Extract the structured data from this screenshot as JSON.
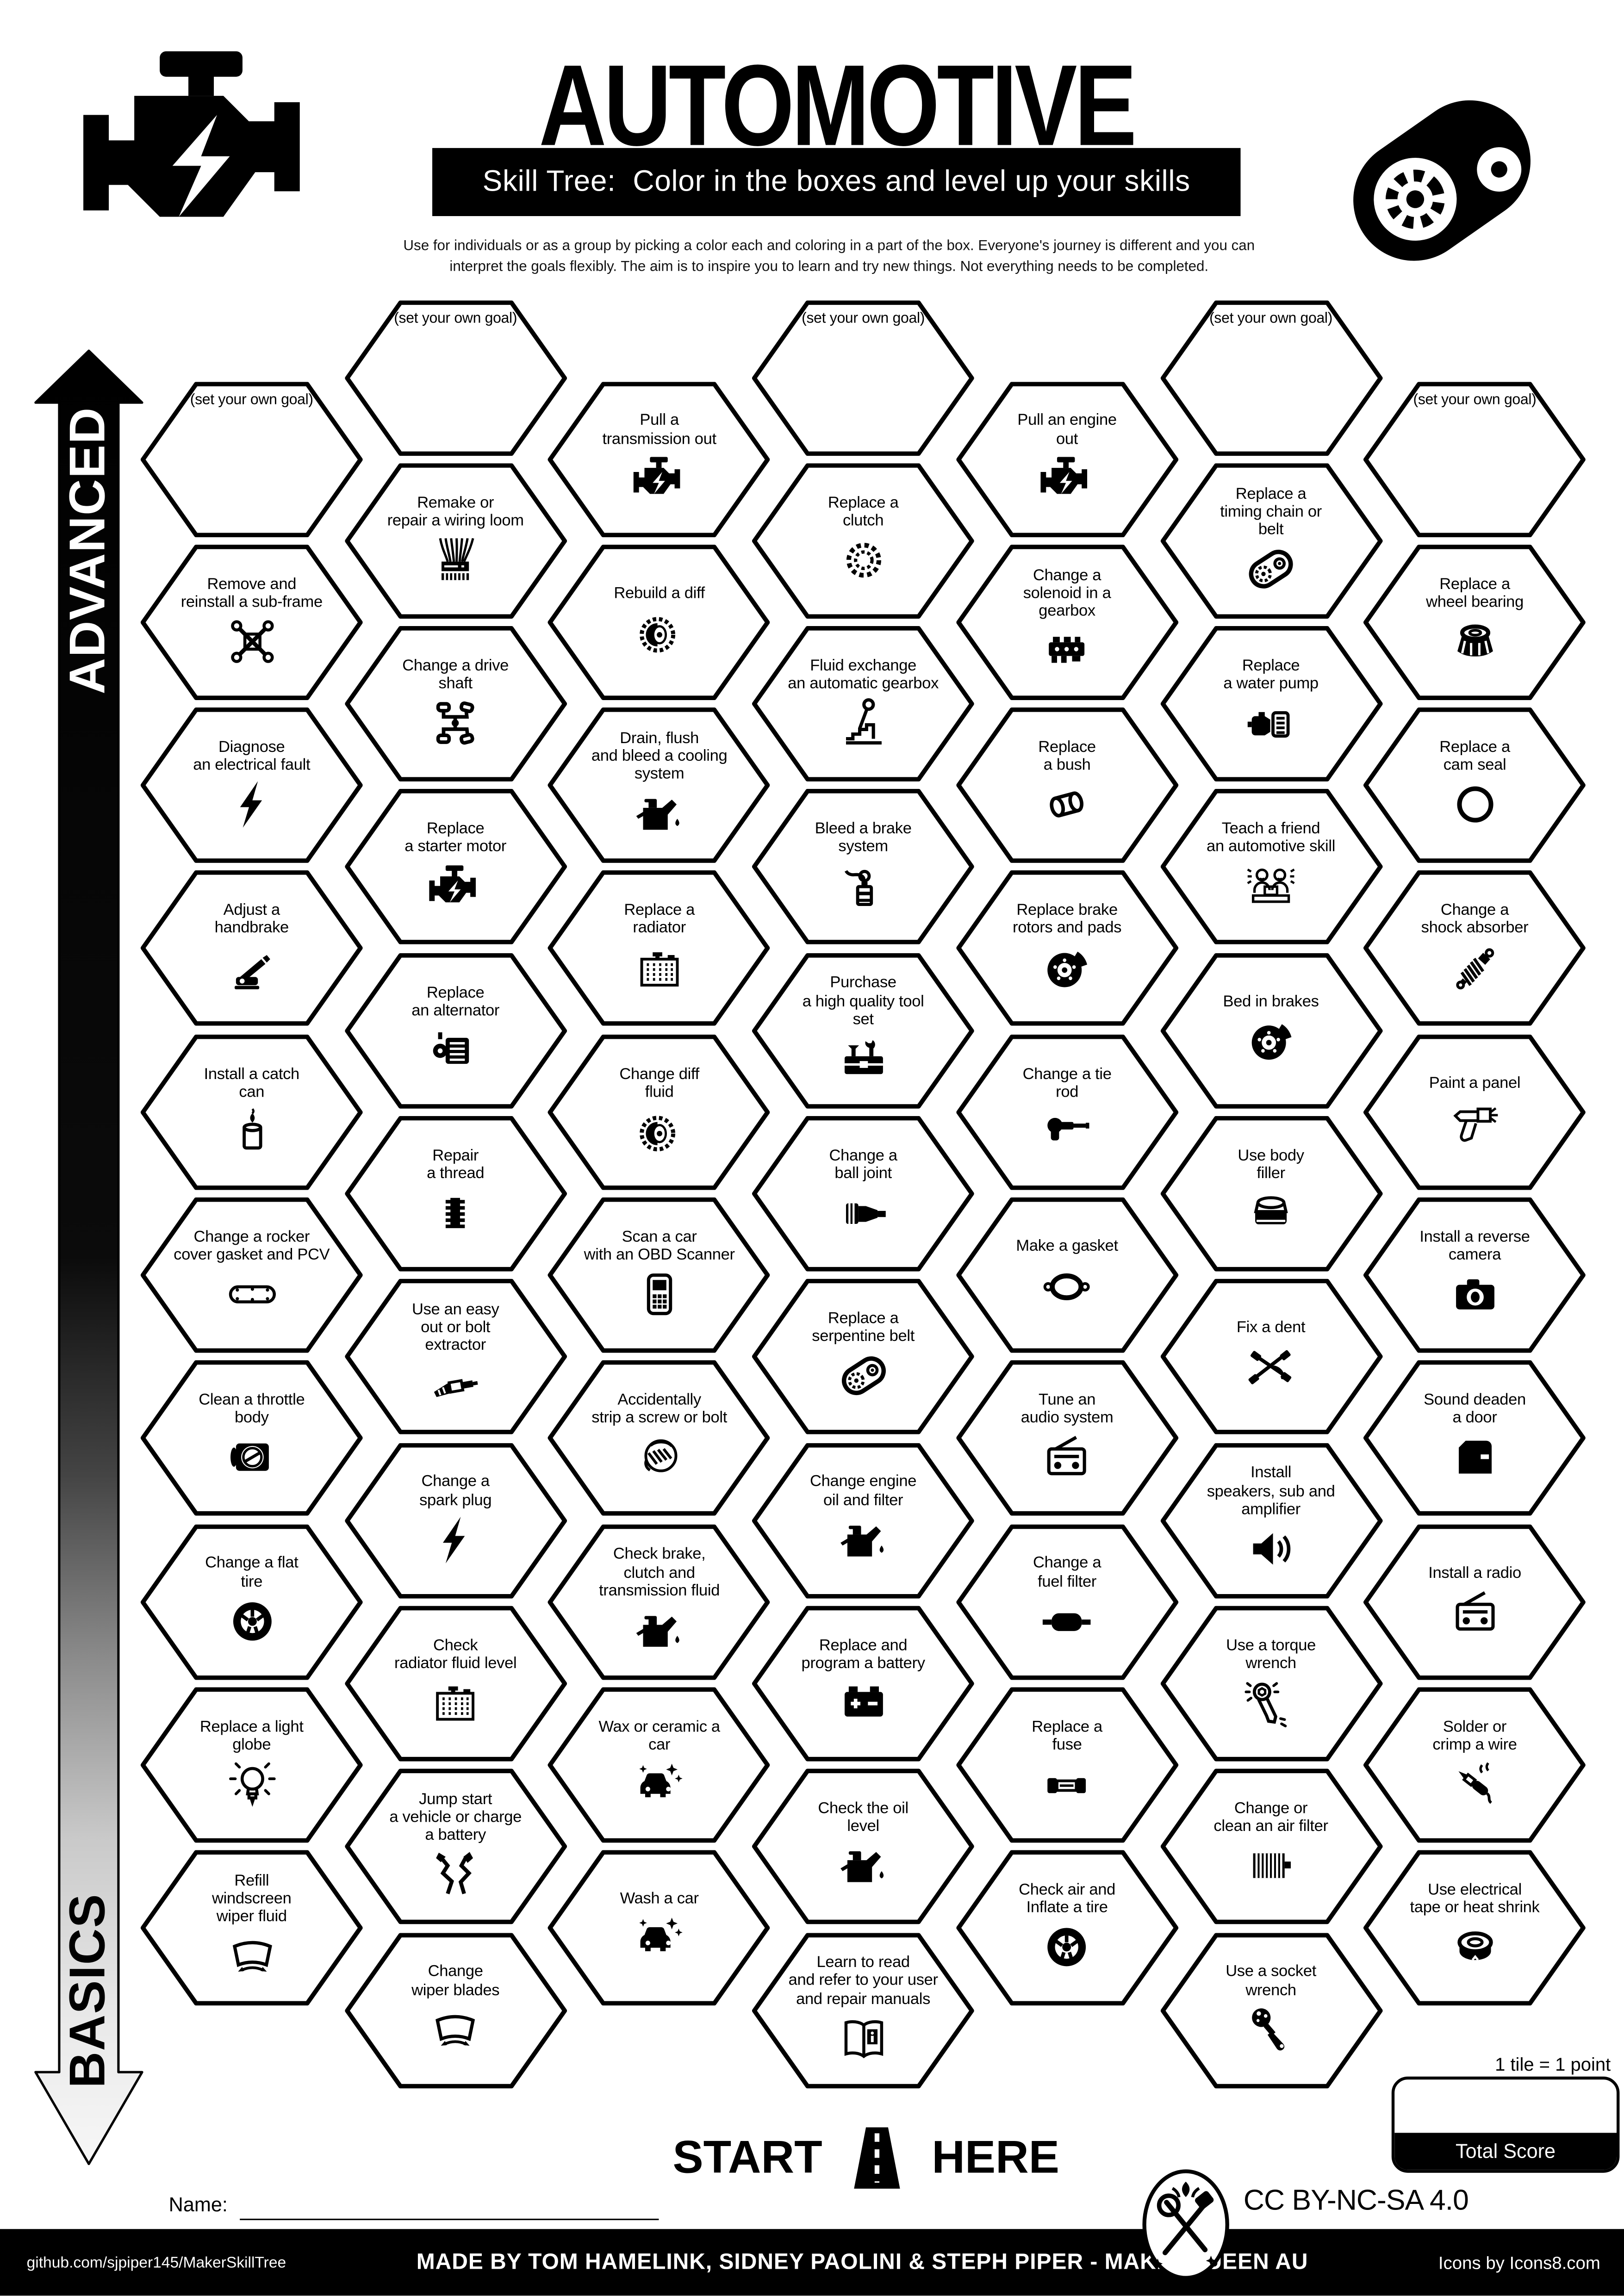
{
  "header": {
    "title": "AUTOMOTIVE",
    "subtitle": "Skill Tree:  Color in the boxes and level up your skills",
    "description_line1": "Use for individuals or as a group by picking a color each and coloring in a part of the box.  Everyone's journey is different and you can",
    "description_line2": "interpret the goals flexibly.  The aim is to inspire you to learn and try new things. Not everything needs to be completed.",
    "logo_left_icon": "engine-icon",
    "logo_right_icon": "timing-belt-icon"
  },
  "axis": {
    "top_label": "ADVANCED",
    "bottom_label": "BASICS"
  },
  "start_here": {
    "start": "START",
    "here": "HERE",
    "icon": "road-icon"
  },
  "scoring": {
    "note": "1 tile = 1 point",
    "total_label": "Total Score"
  },
  "name_field": {
    "label": "Name:"
  },
  "license": {
    "text": "CC BY-NC-SA 4.0",
    "badge_icon": "crossed-tools-icon"
  },
  "footer": {
    "left": "github.com/sjpiper145/MakerSkillTree",
    "center": "MADE BY TOM HAMELINK, SIDNEY PAOLINI & STEPH PIPER  -  MAKERQUEEN AU",
    "right": "Icons by Icons8.com"
  },
  "grid": {
    "columns": 7,
    "hexes": [
      {
        "col": 0,
        "row": 0,
        "label": "(set your own goal)",
        "icon": "none",
        "goal": true
      },
      {
        "col": 0,
        "row": 1,
        "label": "Remove and\nreinstall a sub-frame",
        "icon": "subframe-icon"
      },
      {
        "col": 0,
        "row": 2,
        "label": "Diagnose\nan electrical fault",
        "icon": "lightning-icon"
      },
      {
        "col": 0,
        "row": 3,
        "label": "Adjust a\nhandbrake",
        "icon": "handbrake-icon"
      },
      {
        "col": 0,
        "row": 4,
        "label": "Install a catch\ncan",
        "icon": "catch-can-icon"
      },
      {
        "col": 0,
        "row": 5,
        "label": "Change a rocker\ncover gasket and PCV",
        "icon": "rocker-cover-icon"
      },
      {
        "col": 0,
        "row": 6,
        "label": "Clean a throttle\nbody",
        "icon": "throttle-body-icon"
      },
      {
        "col": 0,
        "row": 7,
        "label": "Change a flat\ntire",
        "icon": "wheel-icon"
      },
      {
        "col": 0,
        "row": 8,
        "label": "Replace a light\nglobe",
        "icon": "bulb-icon"
      },
      {
        "col": 0,
        "row": 9,
        "label": "Refill\nwindscreen\nwiper fluid",
        "icon": "wiper-icon"
      },
      {
        "col": 1,
        "row": 0,
        "label": "(set your own goal)",
        "icon": "none",
        "goal": true
      },
      {
        "col": 1,
        "row": 1,
        "label": "Remake or\nrepair a wiring loom",
        "icon": "wiring-loom-icon"
      },
      {
        "col": 1,
        "row": 2,
        "label": "Change a drive\nshaft",
        "icon": "drive-shaft-icon"
      },
      {
        "col": 1,
        "row": 3,
        "label": "Replace\na starter motor",
        "icon": "engine-icon"
      },
      {
        "col": 1,
        "row": 4,
        "label": "Replace\nan alternator",
        "icon": "alternator-icon"
      },
      {
        "col": 1,
        "row": 5,
        "label": "Repair\na thread",
        "icon": "thread-insert-icon"
      },
      {
        "col": 1,
        "row": 6,
        "label": "Use an easy\nout or bolt\nextractor",
        "icon": "bolt-extractor-icon"
      },
      {
        "col": 1,
        "row": 7,
        "label": "Change a\nspark plug",
        "icon": "lightning-icon"
      },
      {
        "col": 1,
        "row": 8,
        "label": "Check\nradiator fluid level",
        "icon": "radiator-icon"
      },
      {
        "col": 1,
        "row": 9,
        "label": "Jump start\na vehicle or charge\na battery",
        "icon": "jumper-cables-icon"
      },
      {
        "col": 1,
        "row": 10,
        "label": "Change\nwiper blades",
        "icon": "wiper-icon"
      },
      {
        "col": 2,
        "row": 0,
        "label": "Pull a\ntransmission out",
        "icon": "engine-icon"
      },
      {
        "col": 2,
        "row": 1,
        "label": "Rebuild a diff",
        "icon": "diff-gear-icon"
      },
      {
        "col": 2,
        "row": 2,
        "label": "Drain, flush\nand bleed a cooling\nsystem",
        "icon": "oil-can-icon"
      },
      {
        "col": 2,
        "row": 3,
        "label": "Replace a\nradiator",
        "icon": "radiator-icon"
      },
      {
        "col": 2,
        "row": 4,
        "label": "Change diff\nfluid",
        "icon": "diff-gear-icon"
      },
      {
        "col": 2,
        "row": 5,
        "label": "Scan a car\nwith an OBD Scanner",
        "icon": "obd-scanner-icon"
      },
      {
        "col": 2,
        "row": 6,
        "label": "Accidentally\nstrip a screw or bolt",
        "icon": "facepalm-icon"
      },
      {
        "col": 2,
        "row": 7,
        "label": "Check brake,\nclutch and\ntransmission fluid",
        "icon": "oil-can-icon"
      },
      {
        "col": 2,
        "row": 8,
        "label": "Wax or ceramic a\ncar",
        "icon": "clean-car-icon"
      },
      {
        "col": 2,
        "row": 9,
        "label": "Wash a car",
        "icon": "clean-car-icon"
      },
      {
        "col": 3,
        "row": 0,
        "label": "(set your own goal)",
        "icon": "none",
        "goal": true
      },
      {
        "col": 3,
        "row": 1,
        "label": "Replace a\nclutch",
        "icon": "clutch-disc-icon"
      },
      {
        "col": 3,
        "row": 2,
        "label": "Fluid exchange\nan automatic gearbox",
        "icon": "gear-shifter-icon"
      },
      {
        "col": 3,
        "row": 3,
        "label": "Bleed a brake\nsystem",
        "icon": "bleed-bottle-icon"
      },
      {
        "col": 3,
        "row": 4,
        "label": "Purchase\na high quality tool\nset",
        "icon": "toolbox-icon"
      },
      {
        "col": 3,
        "row": 5,
        "label": "Change a\nball joint",
        "icon": "ball-joint-icon"
      },
      {
        "col": 3,
        "row": 6,
        "label": "Replace a\nserpentine belt",
        "icon": "belt-pulleys-icon"
      },
      {
        "col": 3,
        "row": 7,
        "label": "Change engine\noil and filter",
        "icon": "oil-can-icon"
      },
      {
        "col": 3,
        "row": 8,
        "label": "Replace and\nprogram a battery",
        "icon": "battery-icon"
      },
      {
        "col": 3,
        "row": 9,
        "label": "Check the oil\nlevel",
        "icon": "oil-can-icon"
      },
      {
        "col": 3,
        "row": 10,
        "label": "Learn to read\nand refer to your user\nand repair manuals",
        "icon": "book-icon"
      },
      {
        "col": 4,
        "row": 0,
        "label": "Pull an engine\nout",
        "icon": "engine-icon"
      },
      {
        "col": 4,
        "row": 1,
        "label": "Change a\nsolenoid in a\ngearbox",
        "icon": "solenoid-icon"
      },
      {
        "col": 4,
        "row": 2,
        "label": "Replace\na bush",
        "icon": "bush-icon"
      },
      {
        "col": 4,
        "row": 3,
        "label": "Replace brake\nrotors and pads",
        "icon": "brake-disc-icon"
      },
      {
        "col": 4,
        "row": 4,
        "label": "Change a tie\nrod",
        "icon": "tie-rod-icon"
      },
      {
        "col": 4,
        "row": 5,
        "label": "Make a gasket",
        "icon": "gasket-icon"
      },
      {
        "col": 4,
        "row": 6,
        "label": "Tune an\naudio system",
        "icon": "radio-icon"
      },
      {
        "col": 4,
        "row": 7,
        "label": "Change a\nfuel filter",
        "icon": "fuel-filter-icon"
      },
      {
        "col": 4,
        "row": 8,
        "label": "Replace a\nfuse",
        "icon": "fuse-icon"
      },
      {
        "col": 4,
        "row": 9,
        "label": "Check air and\nInflate a tire",
        "icon": "wheel-icon"
      },
      {
        "col": 5,
        "row": 0,
        "label": "(set your own goal)",
        "icon": "none",
        "goal": true
      },
      {
        "col": 5,
        "row": 1,
        "label": "Replace a\ntiming chain or\nbelt",
        "icon": "belt-pulleys-icon"
      },
      {
        "col": 5,
        "row": 2,
        "label": "Replace\na water pump",
        "icon": "water-pump-icon"
      },
      {
        "col": 5,
        "row": 3,
        "label": "Teach a friend\nan automotive skill",
        "icon": "teach-friend-icon"
      },
      {
        "col": 5,
        "row": 4,
        "label": "Bed in brakes",
        "icon": "brake-disc-icon"
      },
      {
        "col": 5,
        "row": 5,
        "label": "Use body\nfiller",
        "icon": "body-filler-icon"
      },
      {
        "col": 5,
        "row": 6,
        "label": "Fix a dent",
        "icon": "dent-tools-icon"
      },
      {
        "col": 5,
        "row": 7,
        "label": "Install\nspeakers, sub and\namplifier",
        "icon": "speaker-icon"
      },
      {
        "col": 5,
        "row": 8,
        "label": "Use a torque\nwrench",
        "icon": "torque-wrench-icon"
      },
      {
        "col": 5,
        "row": 9,
        "label": "Change or\nclean an air filter",
        "icon": "air-filter-icon"
      },
      {
        "col": 5,
        "row": 10,
        "label": "Use a socket\nwrench",
        "icon": "socket-wrench-icon"
      },
      {
        "col": 6,
        "row": 0,
        "label": "(set your own goal)",
        "icon": "none",
        "goal": true
      },
      {
        "col": 6,
        "row": 1,
        "label": "Replace a\nwheel bearing",
        "icon": "wheel-bearing-icon"
      },
      {
        "col": 6,
        "row": 2,
        "label": "Replace a\ncam seal",
        "icon": "o-ring-icon"
      },
      {
        "col": 6,
        "row": 3,
        "label": "Change a\nshock absorber",
        "icon": "shock-absorber-icon"
      },
      {
        "col": 6,
        "row": 4,
        "label": "Paint a panel",
        "icon": "spray-gun-icon"
      },
      {
        "col": 6,
        "row": 5,
        "label": "Install a reverse\ncamera",
        "icon": "camera-icon"
      },
      {
        "col": 6,
        "row": 6,
        "label": "Sound deaden\na door",
        "icon": "car-door-icon"
      },
      {
        "col": 6,
        "row": 7,
        "label": "Install a radio",
        "icon": "radio-icon"
      },
      {
        "col": 6,
        "row": 8,
        "label": "Solder or\ncrimp a wire",
        "icon": "soldering-iron-icon"
      },
      {
        "col": 6,
        "row": 9,
        "label": "Use electrical\ntape or heat shrink",
        "icon": "tape-roll-icon"
      }
    ]
  }
}
